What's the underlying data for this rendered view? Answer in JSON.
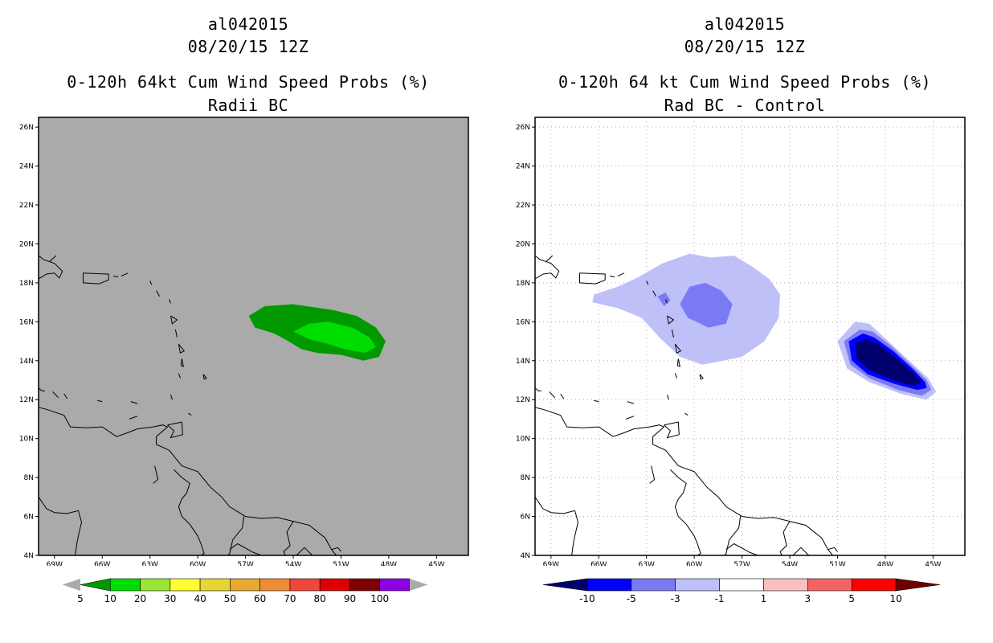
{
  "left": {
    "title_line1": "al042015",
    "title_line2": "08/20/15 12Z",
    "title_line3": "0-120h 64kt Cum Wind Speed Probs (%)",
    "title_line4": "Radii BC",
    "background": "#aaaaaa",
    "chart_data": {
      "type": "heatmap",
      "title": "0-120h 64kt Cum Wind Speed Probs (%)",
      "subtitle": "Radii BC",
      "xlabel": "",
      "ylabel": "",
      "xlim": [
        -70,
        -43
      ],
      "ylim": [
        4,
        26.5
      ],
      "x_ticks": [
        "69W",
        "66W",
        "63W",
        "60W",
        "57W",
        "54W",
        "51W",
        "48W",
        "45W"
      ],
      "y_ticks": [
        "4N",
        "6N",
        "8N",
        "10N",
        "12N",
        "14N",
        "16N",
        "18N",
        "20N",
        "22N",
        "24N",
        "26N"
      ],
      "grid": false,
      "regions": [
        {
          "level": "5-10",
          "color": "#009900",
          "outline": [
            [
              -56.8,
              16.3
            ],
            [
              -55.8,
              16.8
            ],
            [
              -54.0,
              16.9
            ],
            [
              -51.5,
              16.6
            ],
            [
              -50.0,
              16.3
            ],
            [
              -48.8,
              15.7
            ],
            [
              -48.2,
              15.0
            ],
            [
              -48.6,
              14.2
            ],
            [
              -49.6,
              14.0
            ],
            [
              -51.0,
              14.3
            ],
            [
              -52.5,
              14.4
            ],
            [
              -53.5,
              14.6
            ],
            [
              -54.3,
              15.0
            ],
            [
              -55.2,
              15.4
            ],
            [
              -56.4,
              15.7
            ]
          ]
        },
        {
          "level": "10-20",
          "color": "#00dd00",
          "outline": [
            [
              -54.0,
              15.5
            ],
            [
              -53.0,
              15.9
            ],
            [
              -51.8,
              16.0
            ],
            [
              -50.3,
              15.7
            ],
            [
              -49.2,
              15.2
            ],
            [
              -48.8,
              14.7
            ],
            [
              -49.5,
              14.4
            ],
            [
              -50.8,
              14.6
            ],
            [
              -52.0,
              14.9
            ],
            [
              -53.0,
              15.1
            ]
          ]
        }
      ]
    },
    "colorbar": {
      "labels": [
        "5",
        "10",
        "20",
        "30",
        "40",
        "50",
        "60",
        "70",
        "80",
        "90",
        "100"
      ],
      "colors": [
        "#009900",
        "#00dd00",
        "#99e633",
        "#ffff33",
        "#e6d633",
        "#e6aa33",
        "#f08c33",
        "#f0463c",
        "#dc0000",
        "#800000",
        "#8c00e6"
      ],
      "end_color": "#aaaaaa"
    }
  },
  "right": {
    "title_line1": "al042015",
    "title_line2": "08/20/15 12Z",
    "title_line3": "0-120h 64 kt Cum Wind Speed Probs (%)",
    "title_line4": "Rad BC - Control",
    "background": "#ffffff",
    "chart_data": {
      "type": "heatmap",
      "title": "0-120h 64 kt Cum Wind Speed Probs (%)",
      "subtitle": "Rad BC - Control",
      "xlabel": "",
      "ylabel": "",
      "xlim": [
        -70,
        -43
      ],
      "ylim": [
        4,
        26.5
      ],
      "x_ticks": [
        "69W",
        "66W",
        "63W",
        "60W",
        "57W",
        "54W",
        "51W",
        "48W",
        "45W"
      ],
      "y_ticks": [
        "4N",
        "6N",
        "8N",
        "10N",
        "12N",
        "14N",
        "16N",
        "18N",
        "20N",
        "22N",
        "24N",
        "26N"
      ],
      "grid": true,
      "regions": [
        {
          "level": "-3 to -1",
          "color": "#c0c0f8",
          "outline": [
            [
              -63.5,
              18.3
            ],
            [
              -62.0,
              19.0
            ],
            [
              -60.3,
              19.5
            ],
            [
              -59.0,
              19.3
            ],
            [
              -57.5,
              19.4
            ],
            [
              -56.3,
              18.8
            ],
            [
              -55.3,
              18.2
            ],
            [
              -54.6,
              17.4
            ],
            [
              -54.7,
              16.2
            ],
            [
              -55.6,
              15.0
            ],
            [
              -57.0,
              14.2
            ],
            [
              -58.8,
              13.9
            ],
            [
              -59.5,
              13.8
            ],
            [
              -60.9,
              14.2
            ],
            [
              -62.2,
              15.2
            ],
            [
              -63.3,
              16.2
            ],
            [
              -64.8,
              16.7
            ],
            [
              -66.4,
              17.0
            ],
            [
              -66.3,
              17.4
            ],
            [
              -64.8,
              17.8
            ]
          ]
        },
        {
          "level": "-5 to -3",
          "color": "#7a7af5",
          "outline": [
            [
              -60.3,
              17.8
            ],
            [
              -59.3,
              18.0
            ],
            [
              -58.3,
              17.6
            ],
            [
              -57.6,
              16.9
            ],
            [
              -58.0,
              15.9
            ],
            [
              -59.1,
              15.7
            ],
            [
              -60.4,
              16.2
            ],
            [
              -60.9,
              16.9
            ]
          ]
        },
        {
          "level": "-5 to -3",
          "color": "#7a7af5",
          "outline": [
            [
              -62.3,
              17.3
            ],
            [
              -61.8,
              17.5
            ],
            [
              -61.5,
              17.1
            ],
            [
              -61.9,
              16.8
            ]
          ]
        },
        {
          "level": "-3 to -1",
          "color": "#c0c0f8",
          "outline": [
            [
              -51.0,
              15.0
            ],
            [
              -49.9,
              16.0
            ],
            [
              -49.0,
              15.9
            ],
            [
              -47.8,
              15.0
            ],
            [
              -46.5,
              14.0
            ],
            [
              -45.3,
              13.1
            ],
            [
              -44.8,
              12.4
            ],
            [
              -45.4,
              12.0
            ],
            [
              -47.0,
              12.3
            ],
            [
              -49.0,
              12.9
            ],
            [
              -50.4,
              13.6
            ]
          ]
        },
        {
          "level": "-5 to -3",
          "color": "#7a7af5",
          "outline": [
            [
              -50.6,
              15.0
            ],
            [
              -49.6,
              15.6
            ],
            [
              -48.8,
              15.5
            ],
            [
              -47.7,
              14.8
            ],
            [
              -46.4,
              13.8
            ],
            [
              -45.4,
              13.0
            ],
            [
              -45.1,
              12.5
            ],
            [
              -45.7,
              12.2
            ],
            [
              -47.2,
              12.5
            ],
            [
              -49.0,
              13.1
            ],
            [
              -50.2,
              13.8
            ]
          ]
        },
        {
          "level": "-10 to -5",
          "color": "#0000ff",
          "outline": [
            [
              -50.3,
              15.0
            ],
            [
              -49.4,
              15.4
            ],
            [
              -48.7,
              15.2
            ],
            [
              -47.5,
              14.5
            ],
            [
              -46.3,
              13.6
            ],
            [
              -45.5,
              12.9
            ],
            [
              -45.4,
              12.6
            ],
            [
              -46.0,
              12.5
            ],
            [
              -47.4,
              12.8
            ],
            [
              -49.1,
              13.3
            ],
            [
              -50.1,
              14.0
            ]
          ]
        },
        {
          "level": "< -10",
          "color": "#00006e",
          "outline": [
            [
              -49.9,
              14.9
            ],
            [
              -49.2,
              15.1
            ],
            [
              -48.5,
              14.9
            ],
            [
              -47.4,
              14.2
            ],
            [
              -46.3,
              13.4
            ],
            [
              -45.7,
              12.9
            ],
            [
              -46.2,
              12.7
            ],
            [
              -47.5,
              13.0
            ],
            [
              -49.0,
              13.5
            ],
            [
              -49.8,
              14.1
            ]
          ]
        }
      ]
    },
    "colorbar": {
      "labels": [
        "-10",
        "-5",
        "-3",
        "-1",
        "1",
        "3",
        "5",
        "10"
      ],
      "colors": [
        "#00006e",
        "#0000ff",
        "#7a7af5",
        "#c0c0f8",
        "#ffffff",
        "#f8c0c0",
        "#f56464",
        "#ff0000",
        "#6e0000"
      ]
    }
  },
  "map": {
    "coastlines": [
      [
        [
          -70,
          18.2
        ],
        [
          -69.5,
          18.45
        ],
        [
          -69.0,
          18.5
        ],
        [
          -68.7,
          18.25
        ],
        [
          -68.5,
          18.6
        ],
        [
          -69.0,
          19.0
        ],
        [
          -69.7,
          19.2
        ],
        [
          -70,
          19.4
        ]
      ],
      [
        [
          -69.3,
          19.1
        ],
        [
          -68.9,
          19.4
        ]
      ],
      [
        [
          -67.2,
          18.5
        ],
        [
          -65.6,
          18.45
        ],
        [
          -65.6,
          18.15
        ],
        [
          -66.2,
          17.95
        ],
        [
          -67.2,
          18.0
        ],
        [
          -67.2,
          18.5
        ]
      ],
      [
        [
          -65.3,
          18.35
        ],
        [
          -65.0,
          18.3
        ]
      ],
      [
        [
          -64.8,
          18.35
        ],
        [
          -64.4,
          18.5
        ]
      ],
      [
        [
          -63.0,
          18.1
        ],
        [
          -62.9,
          17.9
        ]
      ],
      [
        [
          -62.6,
          17.6
        ],
        [
          -62.4,
          17.3
        ]
      ],
      [
        [
          -61.8,
          17.15
        ],
        [
          -61.7,
          16.95
        ]
      ],
      [
        [
          -61.7,
          16.3
        ],
        [
          -61.3,
          16.1
        ],
        [
          -61.6,
          15.9
        ],
        [
          -61.7,
          16.3
        ]
      ],
      [
        [
          -61.4,
          15.6
        ],
        [
          -61.3,
          15.2
        ],
        [
          -61.4,
          15.6
        ]
      ],
      [
        [
          -61.2,
          14.85
        ],
        [
          -60.85,
          14.5
        ],
        [
          -61.1,
          14.4
        ],
        [
          -61.2,
          14.85
        ]
      ],
      [
        [
          -61.0,
          14.1
        ],
        [
          -60.9,
          13.7
        ],
        [
          -61.05,
          13.75
        ],
        [
          -61.0,
          14.1
        ]
      ],
      [
        [
          -61.2,
          13.35
        ],
        [
          -61.1,
          13.1
        ]
      ],
      [
        [
          -59.65,
          13.3
        ],
        [
          -59.45,
          13.1
        ],
        [
          -59.6,
          13.05
        ],
        [
          -59.65,
          13.3
        ]
      ],
      [
        [
          -61.7,
          12.25
        ],
        [
          -61.6,
          12.0
        ]
      ],
      [
        [
          -70,
          12.6
        ],
        [
          -69.8,
          12.45
        ],
        [
          -69.6,
          12.45
        ]
      ],
      [
        [
          -69.1,
          12.4
        ],
        [
          -68.75,
          12.1
        ]
      ],
      [
        [
          -68.4,
          12.3
        ],
        [
          -68.2,
          12.05
        ]
      ],
      [
        [
          -66.3,
          11.95
        ],
        [
          -66.0,
          11.9
        ]
      ],
      [
        [
          -64.2,
          11.9
        ],
        [
          -63.8,
          11.8
        ]
      ],
      [
        [
          -70,
          11.6
        ],
        [
          -69.5,
          11.5
        ],
        [
          -68.4,
          11.2
        ],
        [
          -68.0,
          10.6
        ],
        [
          -67.0,
          10.55
        ],
        [
          -66.0,
          10.6
        ],
        [
          -65.1,
          10.1
        ],
        [
          -64.4,
          10.3
        ],
        [
          -63.8,
          10.5
        ],
        [
          -62.8,
          10.6
        ],
        [
          -62.2,
          10.7
        ],
        [
          -61.9,
          10.6
        ],
        [
          -62.6,
          10.1
        ],
        [
          -62.6,
          9.7
        ],
        [
          -61.8,
          9.4
        ],
        [
          -61.0,
          8.6
        ],
        [
          -60.0,
          8.3
        ],
        [
          -59.2,
          7.5
        ],
        [
          -58.5,
          7.0
        ],
        [
          -58.0,
          6.5
        ],
        [
          -57.0,
          6.0
        ],
        [
          -56.0,
          5.9
        ],
        [
          -55.0,
          5.95
        ],
        [
          -54.0,
          5.75
        ],
        [
          -53.0,
          5.55
        ],
        [
          -52.0,
          4.9
        ],
        [
          -51.6,
          4.3
        ],
        [
          -51.3,
          4.0
        ]
      ],
      [
        [
          -61.9,
          10.7
        ],
        [
          -61.0,
          10.85
        ],
        [
          -60.95,
          10.2
        ],
        [
          -61.7,
          10.05
        ],
        [
          -61.5,
          10.4
        ],
        [
          -61.9,
          10.7
        ]
      ],
      [
        [
          -60.6,
          11.3
        ],
        [
          -60.4,
          11.2
        ]
      ],
      [
        [
          -63.8,
          11.15
        ],
        [
          -64.3,
          11.0
        ]
      ],
      [
        [
          -62.7,
          8.6
        ],
        [
          -62.5,
          7.9
        ],
        [
          -62.8,
          7.7
        ]
      ],
      [
        [
          -61.5,
          8.4
        ],
        [
          -61.0,
          8.0
        ],
        [
          -60.5,
          7.7
        ],
        [
          -60.7,
          7.2
        ],
        [
          -61.0,
          6.9
        ],
        [
          -61.2,
          6.5
        ],
        [
          -61.0,
          6.0
        ],
        [
          -60.5,
          5.6
        ],
        [
          -60.0,
          5.0
        ],
        [
          -59.8,
          4.6
        ],
        [
          -59.6,
          4.1
        ],
        [
          -59.8,
          4.0
        ]
      ],
      [
        [
          -57.1,
          6.0
        ],
        [
          -57.2,
          5.4
        ],
        [
          -57.8,
          4.8
        ],
        [
          -58.0,
          4.1
        ],
        [
          -58.1,
          4.0
        ]
      ],
      [
        [
          -54.0,
          5.75
        ],
        [
          -54.4,
          5.2
        ],
        [
          -54.2,
          4.5
        ],
        [
          -54.6,
          4.2
        ],
        [
          -54.5,
          4.0
        ]
      ],
      [
        [
          -58.0,
          4.3
        ],
        [
          -57.5,
          4.6
        ],
        [
          -56.5,
          4.15
        ],
        [
          -56.0,
          4.0
        ]
      ],
      [
        [
          -70,
          7.0
        ],
        [
          -69.5,
          6.4
        ],
        [
          -69.0,
          6.2
        ],
        [
          -68.2,
          6.15
        ],
        [
          -67.5,
          6.3
        ],
        [
          -67.3,
          5.7
        ],
        [
          -67.5,
          5.0
        ],
        [
          -67.6,
          4.6
        ],
        [
          -67.7,
          4.0
        ]
      ],
      [
        [
          -53.8,
          4.0
        ],
        [
          -53.3,
          4.4
        ],
        [
          -52.8,
          4.0
        ]
      ],
      [
        [
          -51.6,
          4.3
        ],
        [
          -51.2,
          4.4
        ],
        [
          -51.0,
          4.2
        ]
      ]
    ]
  }
}
